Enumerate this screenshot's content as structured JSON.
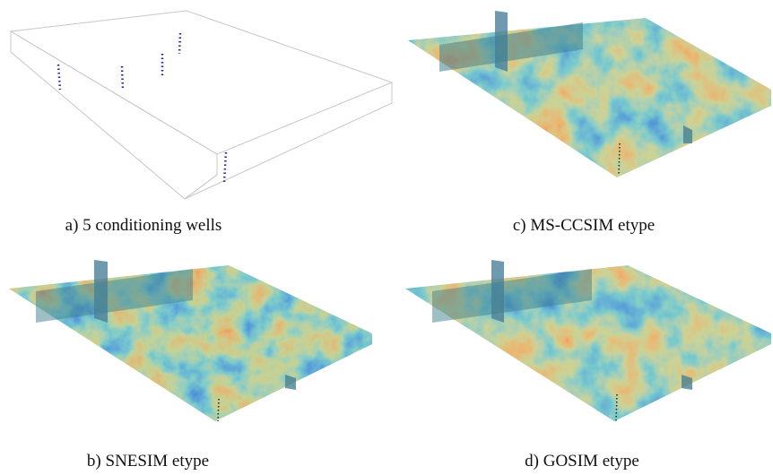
{
  "panels": [
    {
      "caption": "a) 5 conditioning wells"
    },
    {
      "caption": "c) MS-CCSIM etype"
    },
    {
      "caption": "b) SNESIM etype"
    },
    {
      "caption": "d) GOSIM etype"
    }
  ]
}
